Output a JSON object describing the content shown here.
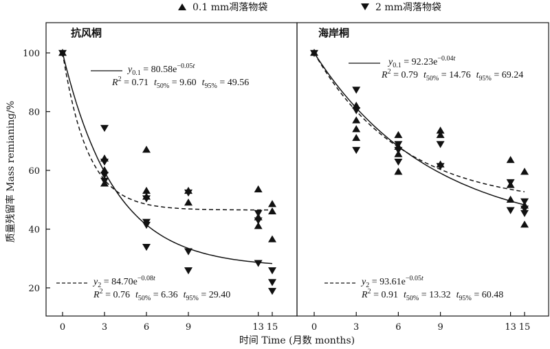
{
  "chart_data": {
    "type": "scatter",
    "legend": [
      {
        "name": "0.1 mm凋落物袋",
        "marker": "triangle-up"
      },
      {
        "name": "2 mm凋落物袋",
        "marker": "triangle-down"
      }
    ],
    "xlabel": "时间 Time (月数 months)",
    "ylabel": "质量残留率  Mass remianing/%",
    "x_ticks": [
      0,
      3,
      6,
      9,
      13,
      15
    ],
    "y_ticks": [
      20,
      40,
      60,
      80,
      100
    ],
    "ylim": [
      15,
      110
    ],
    "panels": [
      {
        "title": "抗风桐",
        "fit_small": {
          "eq_y": "y",
          "eq_sub": "0.1",
          "eq_rhs": " = 80.58e",
          "eq_exp": "−0.05",
          "eq_t": "t",
          "r2": "0.71",
          "t50": "9.60",
          "t95": "49.56"
        },
        "fit_large": {
          "eq_y": "y",
          "eq_sub": "2",
          "eq_rhs": " = 84.70e",
          "eq_exp": "−0.08",
          "eq_t": "t",
          "r2": "0.76",
          "t50": "6.36",
          "t95": "29.40"
        },
        "points_small": [
          {
            "x": 0,
            "y": 100
          },
          {
            "x": 3,
            "y": 64
          },
          {
            "x": 3,
            "y": 60
          },
          {
            "x": 3,
            "y": 55.5
          },
          {
            "x": 6,
            "y": 67
          },
          {
            "x": 6,
            "y": 53
          },
          {
            "x": 6,
            "y": 51
          },
          {
            "x": 9,
            "y": 53
          },
          {
            "x": 9,
            "y": 49
          },
          {
            "x": 13,
            "y": 53.5
          },
          {
            "x": 13,
            "y": 44
          },
          {
            "x": 13,
            "y": 41
          },
          {
            "x": 15,
            "y": 48.5
          },
          {
            "x": 15,
            "y": 46
          },
          {
            "x": 15,
            "y": 36.5
          }
        ],
        "points_large": [
          {
            "x": 0,
            "y": 100
          },
          {
            "x": 3,
            "y": 74.5
          },
          {
            "x": 3,
            "y": 63
          },
          {
            "x": 3,
            "y": 58.5
          },
          {
            "x": 3,
            "y": 56.5
          },
          {
            "x": 6,
            "y": 50.5
          },
          {
            "x": 6,
            "y": 42.5
          },
          {
            "x": 6,
            "y": 41.5
          },
          {
            "x": 6,
            "y": 34
          },
          {
            "x": 9,
            "y": 52.5
          },
          {
            "x": 9,
            "y": 32.5
          },
          {
            "x": 9,
            "y": 26
          },
          {
            "x": 13,
            "y": 45.5
          },
          {
            "x": 13,
            "y": 43
          },
          {
            "x": 13,
            "y": 28.5
          },
          {
            "x": 15,
            "y": 26
          },
          {
            "x": 15,
            "y": 22
          },
          {
            "x": 15,
            "y": 19
          }
        ]
      },
      {
        "title": "海岸桐",
        "fit_small": {
          "eq_y": "y",
          "eq_sub": "0.1",
          "eq_rhs": " = 92.23e",
          "eq_exp": "−0.04",
          "eq_t": "t",
          "r2": "0.79",
          "t50": "14.76",
          "t95": "69.24"
        },
        "fit_large": {
          "eq_y": "y",
          "eq_sub": "2",
          "eq_rhs": " = 93.61e",
          "eq_exp": "−0.05",
          "eq_t": "t",
          "r2": "0.91",
          "t50": "13.32",
          "t95": "60.48"
        },
        "points_small": [
          {
            "x": 0,
            "y": 100
          },
          {
            "x": 3,
            "y": 82
          },
          {
            "x": 3,
            "y": 77
          },
          {
            "x": 3,
            "y": 74
          },
          {
            "x": 3,
            "y": 71
          },
          {
            "x": 6,
            "y": 72
          },
          {
            "x": 6,
            "y": 68
          },
          {
            "x": 6,
            "y": 65.5
          },
          {
            "x": 6,
            "y": 59.5
          },
          {
            "x": 9,
            "y": 73.5
          },
          {
            "x": 9,
            "y": 72
          },
          {
            "x": 9,
            "y": 62
          },
          {
            "x": 13,
            "y": 63.5
          },
          {
            "x": 13,
            "y": 55
          },
          {
            "x": 13,
            "y": 50
          },
          {
            "x": 15,
            "y": 59.5
          },
          {
            "x": 15,
            "y": 48
          },
          {
            "x": 15,
            "y": 41.5
          }
        ],
        "points_large": [
          {
            "x": 0,
            "y": 100
          },
          {
            "x": 3,
            "y": 87.5
          },
          {
            "x": 3,
            "y": 80.5
          },
          {
            "x": 3,
            "y": 67
          },
          {
            "x": 6,
            "y": 69
          },
          {
            "x": 6,
            "y": 67
          },
          {
            "x": 6,
            "y": 63
          },
          {
            "x": 9,
            "y": 69
          },
          {
            "x": 9,
            "y": 61.5
          },
          {
            "x": 13,
            "y": 56
          },
          {
            "x": 13,
            "y": 46.5
          },
          {
            "x": 15,
            "y": 49.5
          },
          {
            "x": 15,
            "y": 47
          },
          {
            "x": 15,
            "y": 45.5
          }
        ]
      }
    ]
  }
}
